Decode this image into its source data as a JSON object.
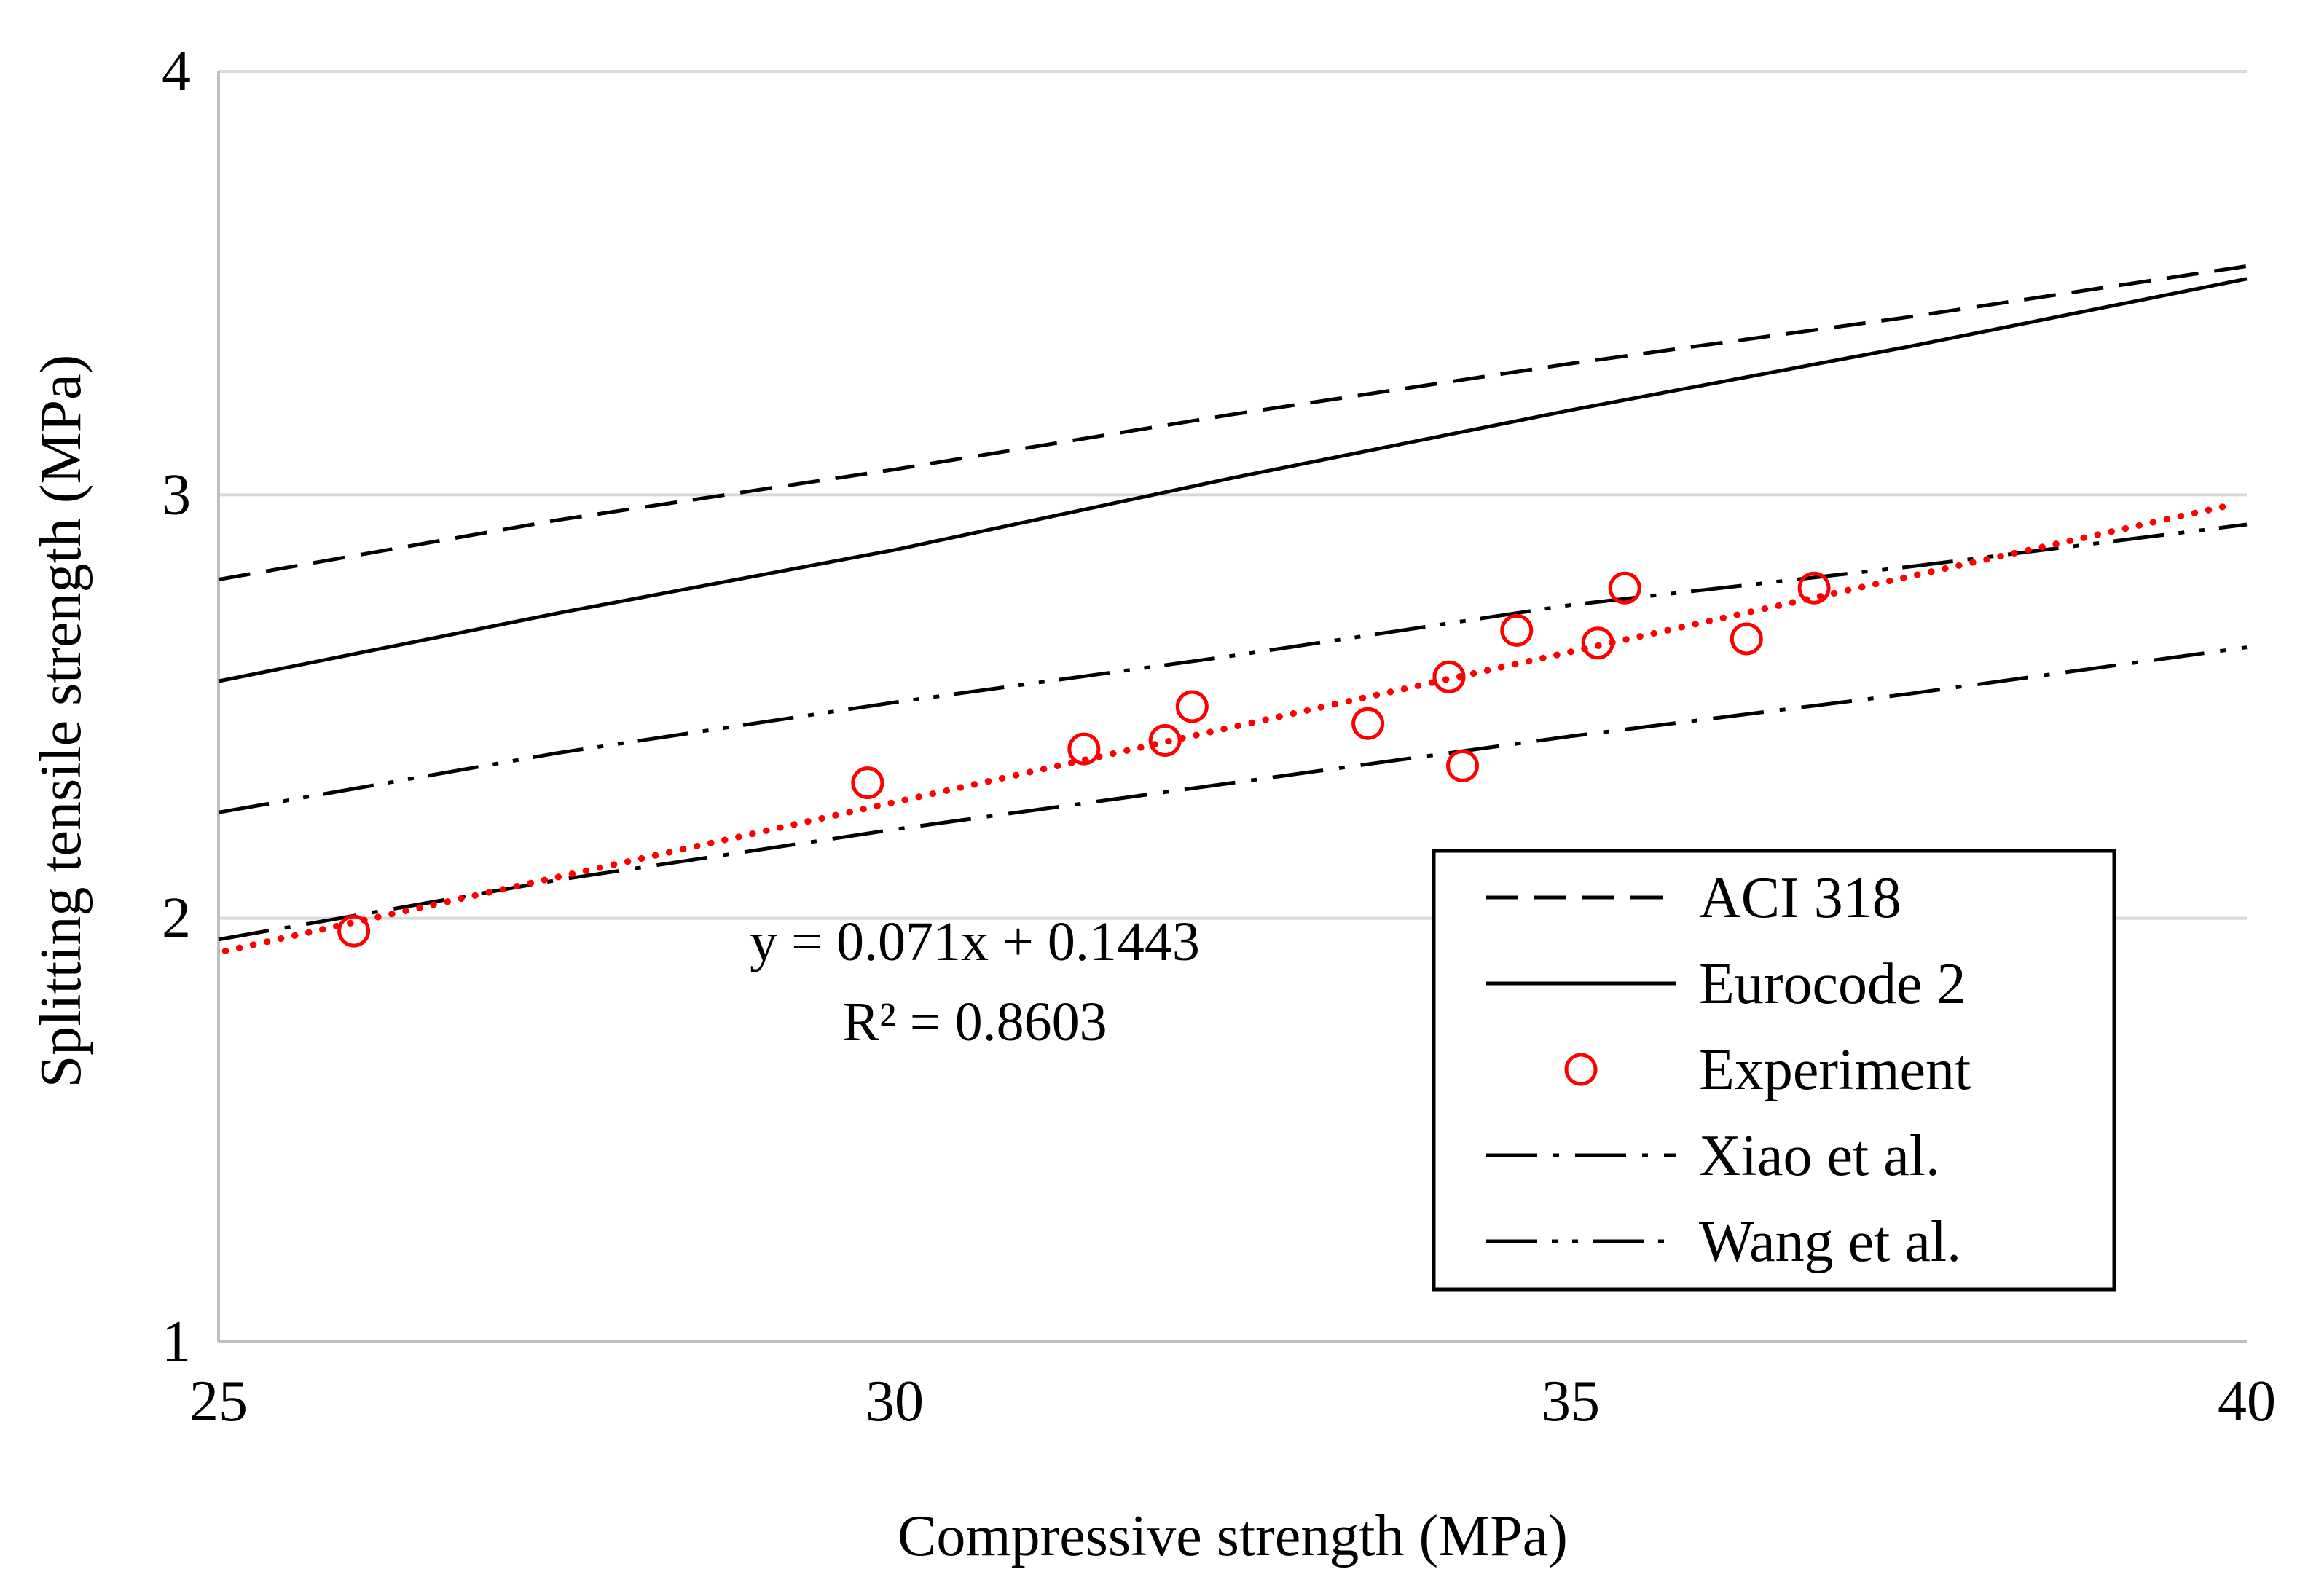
{
  "chart_data": {
    "type": "line",
    "title": "",
    "xlabel": "Compressive strength (MPa)",
    "ylabel": "Splitting tensile strength (MPa)",
    "xlim": [
      25,
      40
    ],
    "ylim": [
      1,
      4
    ],
    "xticks": [
      25,
      30,
      35,
      40
    ],
    "yticks": [
      1,
      2,
      3,
      4
    ],
    "grid": "horizontal",
    "legend_position": "bottom-right",
    "series": [
      {
        "name": "ACI 318",
        "kind": "line",
        "dash": "dashed",
        "color": "#000000",
        "x": [
          25,
          27.5,
          30,
          32.5,
          35,
          37.5,
          40
        ],
        "y": [
          2.8,
          2.94,
          3.06,
          3.19,
          3.31,
          3.42,
          3.54
        ]
      },
      {
        "name": "Eurocode 2",
        "kind": "line",
        "dash": "solid",
        "color": "#000000",
        "x": [
          25,
          27.5,
          30,
          32.5,
          35,
          37.5,
          40
        ],
        "y": [
          2.56,
          2.72,
          2.87,
          3.04,
          3.2,
          3.35,
          3.51
        ]
      },
      {
        "name": "Experiment",
        "kind": "scatter",
        "marker": "open-circle",
        "color": "#ff0000",
        "x": [
          26,
          29.8,
          31.4,
          32,
          32.2,
          33.5,
          34.1,
          34.2,
          34.6,
          35.2,
          35.4,
          36.3,
          36.8
        ],
        "y": [
          1.97,
          2.32,
          2.4,
          2.42,
          2.5,
          2.46,
          2.57,
          2.36,
          2.68,
          2.65,
          2.78,
          2.66,
          2.78
        ]
      },
      {
        "name": "Xiao et al.",
        "kind": "line",
        "dash": "dash-dot",
        "color": "#000000",
        "x": [
          25,
          27.5,
          30,
          32.5,
          35,
          37.5,
          40
        ],
        "y": [
          1.95,
          2.09,
          2.21,
          2.32,
          2.43,
          2.53,
          2.64
        ]
      },
      {
        "name": "Wang et al.",
        "kind": "line",
        "dash": "dash-dot-dot",
        "color": "#000000",
        "x": [
          25,
          27.5,
          30,
          32.5,
          35,
          37.5,
          40
        ],
        "y": [
          2.25,
          2.39,
          2.51,
          2.62,
          2.74,
          2.83,
          2.93
        ]
      }
    ],
    "trendline": {
      "series": "Experiment",
      "kind": "linear",
      "color": "#ff0000",
      "dash": "dotted",
      "slope": 0.071,
      "intercept": 0.1443,
      "x_range": [
        25,
        40
      ],
      "equation": "y = 0.071x + 0.1443",
      "r_squared": "R² = 0.8603"
    }
  }
}
